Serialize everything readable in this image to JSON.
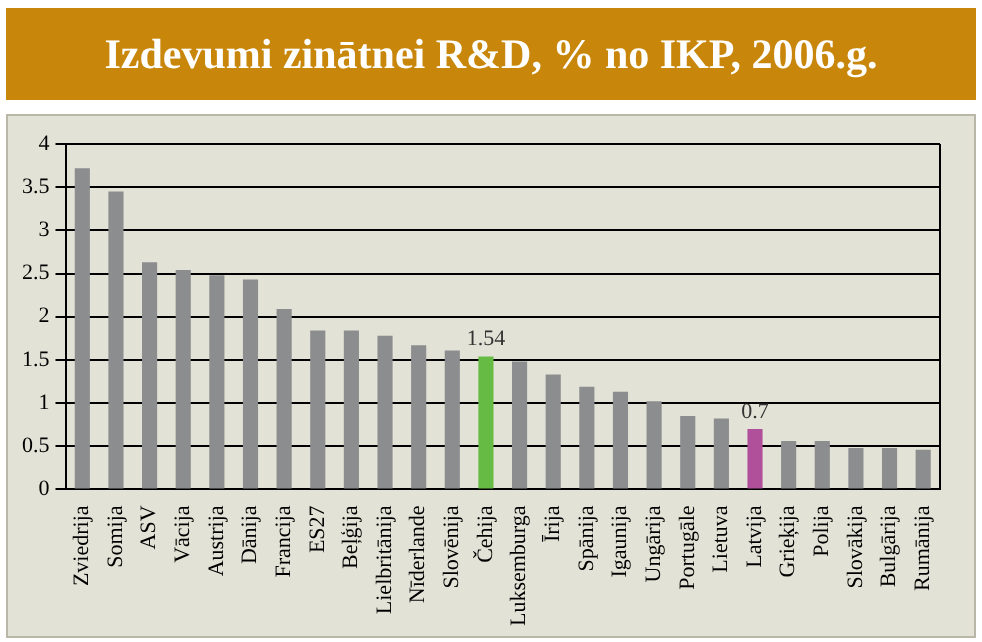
{
  "chart_data": {
    "type": "bar",
    "title": "Izdevumi zinātnei R&D, % no IKP, 2006.g.",
    "categories": [
      "Zviedrija",
      "Somija",
      "ASV",
      "Vācija",
      "Austrija",
      "Dānija",
      "Francija",
      "ES27",
      "Beļģija",
      "Lielbritānija",
      "Nīderlande",
      "Slovēnija",
      "Čehija",
      "Luksemburga",
      "Īrija",
      "Spānija",
      "Igaunija",
      "Ungārija",
      "Portugāle",
      "Lietuva",
      "Latvija",
      "Grieķija",
      "Polija",
      "Slovākija",
      "Bulgārija",
      "Rumānija"
    ],
    "values": [
      3.72,
      3.45,
      2.63,
      2.54,
      2.48,
      2.43,
      2.09,
      1.84,
      1.84,
      1.78,
      1.67,
      1.61,
      1.54,
      1.48,
      1.33,
      1.19,
      1.13,
      1.02,
      0.85,
      0.82,
      0.7,
      0.56,
      0.56,
      0.48,
      0.48,
      0.46
    ],
    "colors": [
      "#8c8d8f",
      "#8c8d8f",
      "#8c8d8f",
      "#8c8d8f",
      "#8c8d8f",
      "#8c8d8f",
      "#8c8d8f",
      "#8c8d8f",
      "#8c8d8f",
      "#8c8d8f",
      "#8c8d8f",
      "#8c8d8f",
      "#66bb44",
      "#8c8d8f",
      "#8c8d8f",
      "#8c8d8f",
      "#8c8d8f",
      "#8c8d8f",
      "#8c8d8f",
      "#8c8d8f",
      "#b0509a",
      "#8c8d8f",
      "#8c8d8f",
      "#8c8d8f",
      "#8c8d8f",
      "#8c8d8f"
    ],
    "value_labels": [
      null,
      null,
      null,
      null,
      null,
      null,
      null,
      null,
      null,
      null,
      null,
      null,
      "1.54",
      null,
      null,
      null,
      null,
      null,
      null,
      null,
      "0.7",
      null,
      null,
      null,
      null,
      null
    ],
    "ylim": [
      0,
      4
    ],
    "yticks": [
      0,
      0.5,
      1,
      1.5,
      2,
      2.5,
      3,
      3.5,
      4
    ],
    "grid": "y",
    "legend": false
  }
}
